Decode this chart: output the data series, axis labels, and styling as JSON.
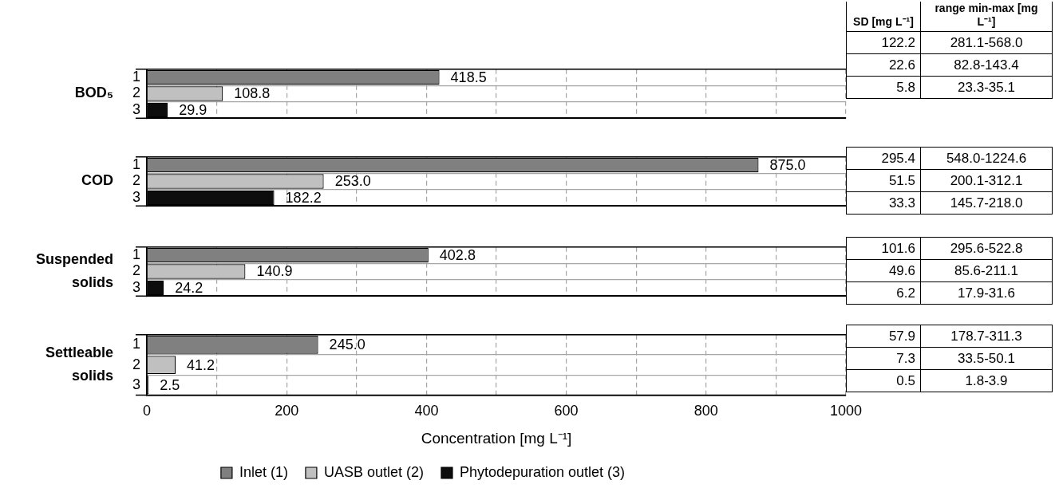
{
  "chart_data": [
    {
      "type": "bar",
      "orientation": "horizontal",
      "ylabel": "BOD₅",
      "categories": [
        "1",
        "2",
        "3"
      ],
      "series": [
        {
          "color": "#808080",
          "values": [
            418.5,
            null,
            null
          ],
          "value_labels": [
            "418.5",
            null,
            null
          ]
        },
        {
          "color": "#c0c0c0",
          "values": [
            null,
            108.8,
            null
          ],
          "value_labels": [
            null,
            "108.8",
            null
          ]
        },
        {
          "color": "#0d0d0d",
          "values": [
            null,
            null,
            29.9
          ],
          "value_labels": [
            null,
            null,
            "29.9"
          ]
        }
      ],
      "xlim": [
        0,
        1000
      ],
      "xticks": [
        0,
        {
          "value": 100,
          "label": null
        },
        200,
        {
          "value": 300,
          "label": null
        },
        400,
        {
          "value": 500,
          "label": null
        },
        600,
        {
          "value": 700,
          "label": null
        },
        800,
        {
          "value": 900,
          "label": null
        },
        1000
      ],
      "grid": true,
      "tick_labels": "y"
    },
    {
      "type": "other",
      "categories": [
        "SD [mg L⁻¹]",
        "range min-max [mg L⁻¹]"
      ],
      "cell_labels": [
        [
          "122.2",
          "281.1-568.0"
        ],
        [
          "22.6",
          "82.8-143.4"
        ],
        [
          "5.8",
          "23.3-35.1"
        ]
      ]
    },
    {
      "type": "bar",
      "orientation": "horizontal",
      "ylabel": "COD",
      "categories": [
        "1",
        "2",
        "3"
      ],
      "series": [
        {
          "color": "#808080",
          "values": [
            875.0,
            null,
            null
          ],
          "value_labels": [
            "875.0",
            null,
            null
          ]
        },
        {
          "color": "#c0c0c0",
          "values": [
            null,
            253.0,
            null
          ],
          "value_labels": [
            null,
            "253.0",
            null
          ]
        },
        {
          "color": "#0d0d0d",
          "values": [
            null,
            null,
            182.2
          ],
          "value_labels": [
            null,
            null,
            "182.2"
          ]
        }
      ],
      "xlim": [
        0,
        1000
      ],
      "xticks": [
        0,
        200,
        {
          "value": 300,
          "label": null
        },
        400,
        {
          "value": 500,
          "label": null
        },
        600,
        {
          "value": 700,
          "label": null
        },
        800,
        {
          "value": 900,
          "label": null
        },
        1000
      ],
      "grid": true,
      "tick_labels": "y"
    },
    {
      "type": "other",
      "cell_labels": [
        [
          "295.4",
          "548.0-1224.6"
        ],
        [
          "51.5",
          "200.1-312.1"
        ],
        [
          "33.3",
          "145.7-218.0"
        ]
      ]
    },
    {
      "type": "bar",
      "orientation": "horizontal",
      "ylabel": "Suspended solids",
      "categories": [
        "1",
        "2",
        "3"
      ],
      "series": [
        {
          "color": "#808080",
          "values": [
            402.8,
            null,
            null
          ],
          "value_labels": [
            "402.8",
            null,
            null
          ]
        },
        {
          "color": "#c0c0c0",
          "values": [
            null,
            140.9,
            null
          ],
          "value_labels": [
            null,
            "140.9",
            null
          ]
        },
        {
          "color": "#0d0d0d",
          "values": [
            null,
            null,
            24.2
          ],
          "value_labels": [
            null,
            null,
            "24.2"
          ]
        }
      ],
      "xlim": [
        0,
        1000
      ],
      "xticks": [
        0,
        {
          "value": 100,
          "label": null
        },
        200,
        {
          "value": 300,
          "label": null
        },
        400,
        {
          "value": 500,
          "label": null
        },
        600,
        {
          "value": 700,
          "label": null
        },
        800,
        {
          "value": 900,
          "label": null
        },
        1000
      ],
      "grid": true,
      "tick_labels": "y"
    },
    {
      "type": "other",
      "cell_labels": [
        [
          "101.6",
          "295.6-522.8"
        ],
        [
          "49.6",
          "85.6-211.1"
        ],
        [
          "6.2",
          "17.9-31.6"
        ]
      ]
    },
    {
      "type": "bar",
      "orientation": "horizontal",
      "ylabel": "Settleable solids",
      "xlabel": "Concentration [mg L⁻¹]",
      "categories": [
        "1",
        "2",
        "3"
      ],
      "series": [
        {
          "name": "Inlet (1)",
          "color": "#808080",
          "values": [
            245.0,
            null,
            null
          ],
          "value_labels": [
            "245.0",
            null,
            null
          ]
        },
        {
          "name": "UASB outlet (2)",
          "color": "#c0c0c0",
          "values": [
            null,
            41.2,
            null
          ],
          "value_labels": [
            null,
            "41.2",
            null
          ]
        },
        {
          "name": "Phytodepuration outlet (3)",
          "color": "#0d0d0d",
          "values": [
            null,
            null,
            2.5
          ],
          "value_labels": [
            null,
            null,
            "2.5"
          ]
        }
      ],
      "xlim": [
        0,
        1000
      ],
      "xticks": [
        0,
        {
          "value": 100,
          "label": null
        },
        200,
        {
          "value": 300,
          "label": null
        },
        400,
        {
          "value": 500,
          "label": null
        },
        600,
        {
          "value": 700,
          "label": null
        },
        800,
        {
          "value": 900,
          "label": null
        },
        1000
      ],
      "grid": true,
      "legend": "bottom"
    },
    {
      "type": "other",
      "cell_labels": [
        [
          "57.9",
          "178.7-311.3"
        ],
        [
          "7.3",
          "33.5-50.1"
        ],
        [
          "0.5",
          "1.8-3.9"
        ]
      ]
    }
  ]
}
